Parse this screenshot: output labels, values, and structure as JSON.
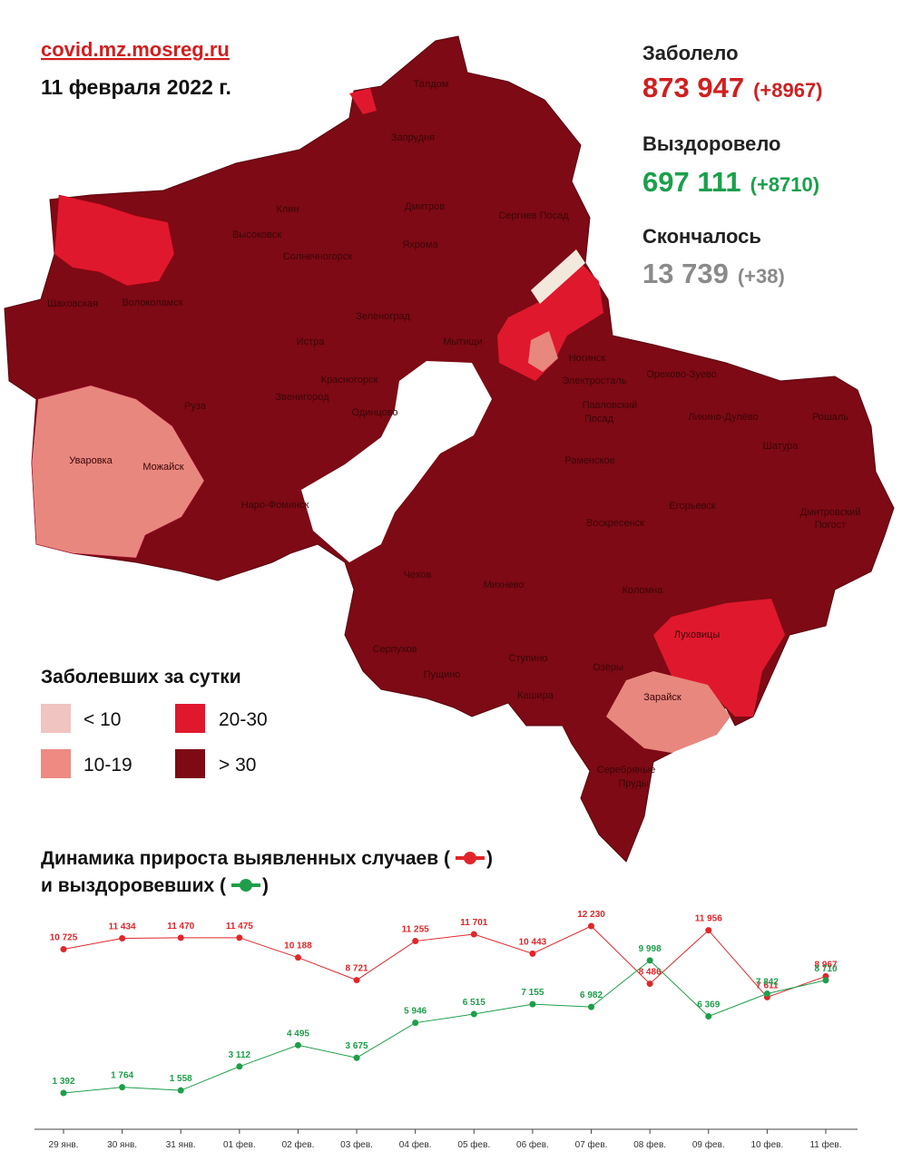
{
  "header": {
    "source": "covid.mz.mosreg.ru",
    "date": "11 февраля 2022 г."
  },
  "stats": [
    {
      "label": "Заболело",
      "total": "873 947",
      "delta": "(+8967)"
    },
    {
      "label": "Выздоровело",
      "total": "697 111",
      "delta": "(+8710)"
    },
    {
      "label": "Скончалось",
      "total": "13 739",
      "delta": "(+38)"
    }
  ],
  "legend": {
    "title": "Заболевших за сутки",
    "items": [
      "< 10",
      "10-19",
      "20-30",
      "> 30"
    ]
  },
  "map": {
    "labels": [
      "Талдом",
      "Запрудня",
      "Клин",
      "Дмитров",
      "Сергиев Посад",
      "Высоковск",
      "Яхрома",
      "Солнечногорск",
      "Шаховская",
      "Волоколамск",
      "Зеленоград",
      "Истра",
      "Мытищи",
      "Ногинск",
      "Орехово-Зуево",
      "Красногорск",
      "Электросталь",
      "Звенигород",
      "Руза",
      "Одинцово",
      "Павловский",
      "Посад",
      "Ликино-Дулёво",
      "Рошаль",
      "Уваровка",
      "Можайск",
      "Раменское",
      "Шатура",
      "Наро-Фоминск",
      "Егорьевск",
      "Воскресенск",
      "Дмитровский",
      "Погост",
      "Чехов",
      "Михнево",
      "Коломна",
      "Луховицы",
      "Серпухов",
      "Ступино",
      "Озёры",
      "Пущино",
      "Кашира",
      "Зарайск",
      "Серебряные",
      "Пруды"
    ]
  },
  "chart_data": {
    "type": "line",
    "title": [
      "Динамика прироста выявленных случаев (",
      "и выздоровевших ("
    ],
    "title_close": ")",
    "categories": [
      "29 янв.",
      "30 янв.",
      "31 янв.",
      "01 фев.",
      "02 фев.",
      "03 фев.",
      "04 фев.",
      "05 фев.",
      "06 фев.",
      "07 фев.",
      "08 фев.",
      "09 фев.",
      "10 фев.",
      "11 фев."
    ],
    "series": [
      {
        "color": "#e0262a",
        "values": [
          10725,
          11434,
          11470,
          11475,
          10188,
          8721,
          11255,
          11701,
          10443,
          12230,
          8486,
          11956,
          7611,
          8967
        ],
        "value_labels": [
          "10 725",
          "11 434",
          "11 470",
          "11 475",
          "10 188",
          "8 721",
          "11 255",
          "11 701",
          "10 443",
          "12 230",
          "8 486",
          "11 956",
          "7 611",
          "8 967"
        ]
      },
      {
        "color": "#1e9e4a",
        "values": [
          1392,
          1764,
          1558,
          3112,
          4495,
          3675,
          5946,
          6515,
          7155,
          6982,
          9998,
          6369,
          7842,
          8710
        ],
        "value_labels": [
          "1 392",
          "1 764",
          "1 558",
          "3 112",
          "4 495",
          "3 675",
          "5 946",
          "6 515",
          "7 155",
          "6 982",
          "9 998",
          "6 369",
          "7 842",
          "8 710"
        ]
      }
    ]
  }
}
